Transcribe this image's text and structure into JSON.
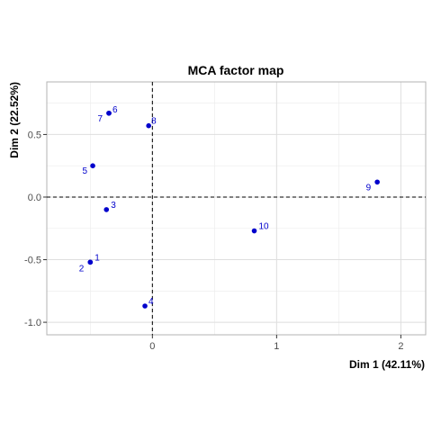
{
  "chart_data": {
    "type": "scatter",
    "title": "MCA factor map",
    "xlabel": "Dim 1 (42.11%)",
    "ylabel": "Dim 2 (22.52%)",
    "xlim": [
      -0.85,
      2.2
    ],
    "ylim": [
      -1.1,
      0.92
    ],
    "xticks": [
      0,
      1,
      2
    ],
    "yticks": [
      -1.0,
      -0.5,
      0.0,
      0.5
    ],
    "xtick_labels": [
      "0",
      "1",
      "2"
    ],
    "ytick_labels": [
      "-1.0",
      "-0.5",
      "0.0",
      "0.5"
    ],
    "grid": true,
    "reference_lines": {
      "x": 0,
      "y": 0
    },
    "point_color": "#0000CC",
    "label_color": "#0000CC",
    "points": [
      {
        "label": "1",
        "x": -0.5,
        "y": -0.52
      },
      {
        "label": "2",
        "x": -0.5,
        "y": -0.52
      },
      {
        "label": "3",
        "x": -0.37,
        "y": -0.1
      },
      {
        "label": "4",
        "x": -0.06,
        "y": -0.87
      },
      {
        "label": "5",
        "x": -0.48,
        "y": 0.25
      },
      {
        "label": "6",
        "x": -0.35,
        "y": 0.67
      },
      {
        "label": "7",
        "x": -0.35,
        "y": 0.67
      },
      {
        "label": "8",
        "x": -0.03,
        "y": 0.57
      },
      {
        "label": "9",
        "x": 1.81,
        "y": 0.12
      },
      {
        "label": "10",
        "x": 0.82,
        "y": -0.27
      }
    ]
  }
}
